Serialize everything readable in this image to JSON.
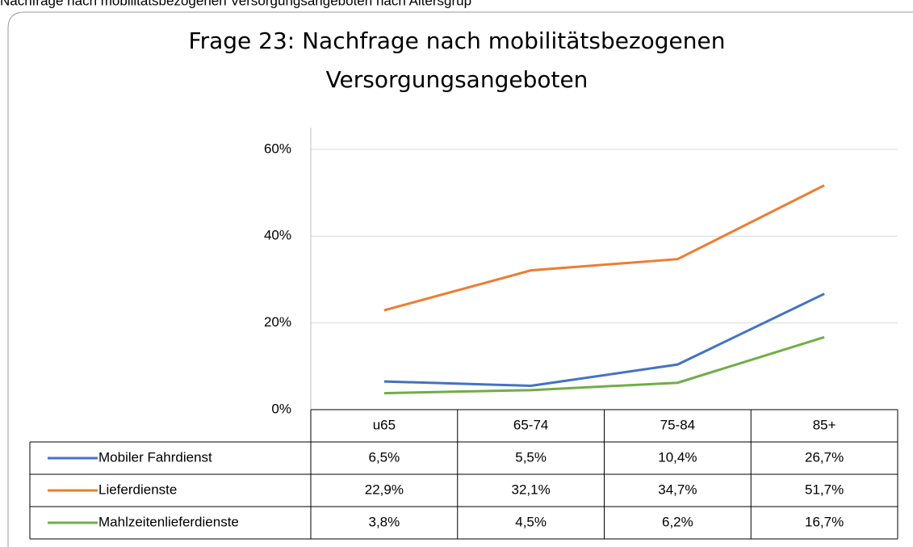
{
  "caption": "Nachfrage nach mobilitätsbezogenen Versorgungsangeboten nach Altersgrup",
  "chart_data": {
    "type": "line",
    "title": "Frage 23: Nachfrage nach mobilitätsbezogenen",
    "subtitle": "Versorgungsangeboten",
    "categories": [
      "u65",
      "65-74",
      "75-84",
      "85+"
    ],
    "series": [
      {
        "name": "Mobiler Fahrdienst",
        "color": "#4472c4",
        "values": [
          6.5,
          5.5,
          10.4,
          26.7
        ],
        "value_labels": [
          "6,5%",
          "5,5%",
          "10,4%",
          "26,7%"
        ]
      },
      {
        "name": "Lieferdienste",
        "color": "#ed7d31",
        "values": [
          22.9,
          32.1,
          34.7,
          51.7
        ],
        "value_labels": [
          "22,9%",
          "32,1%",
          "34,7%",
          "51,7%"
        ]
      },
      {
        "name": "Mahlzeitenlieferdienste",
        "color": "#70ad47",
        "values": [
          3.8,
          4.5,
          6.2,
          16.7
        ],
        "value_labels": [
          "3,8%",
          "4,5%",
          "6,2%",
          "16,7%"
        ]
      }
    ],
    "ylim": [
      0,
      65
    ],
    "yticks": [
      {
        "value": 0,
        "label": "0%"
      },
      {
        "value": 20,
        "label": "20%"
      },
      {
        "value": 40,
        "label": "40%"
      },
      {
        "value": 60,
        "label": "60%"
      }
    ],
    "grid": true,
    "legend": "table"
  }
}
